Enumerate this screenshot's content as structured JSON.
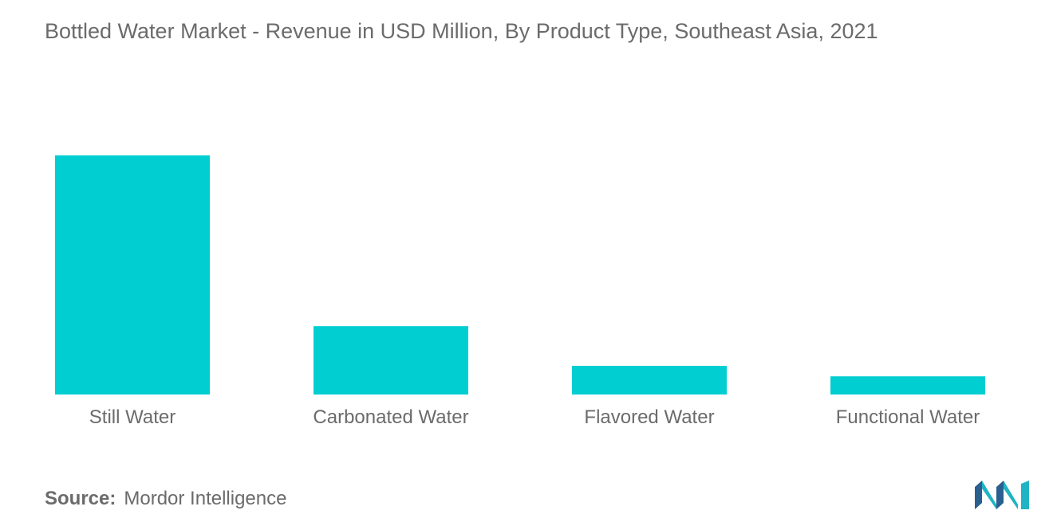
{
  "title": "Bottled Water Market - Revenue in USD Million, By Product Type, Southeast Asia, 2021",
  "source": {
    "label": "Source:",
    "text": "Mordor Intelligence"
  },
  "logo": {
    "icon": "mordor-intelligence-logo-icon",
    "colors": [
      "#2a5f8f",
      "#1fb3c4"
    ]
  },
  "colors": {
    "bar": "#00ced1",
    "text": "#6b6b6b",
    "background": "#ffffff"
  },
  "chart_data": {
    "type": "bar",
    "title": "Bottled Water Market - Revenue in USD Million, By Product Type, Southeast Asia, 2021",
    "categories": [
      "Still Water",
      "Carbonated Water",
      "Flavored Water",
      "Functional Water"
    ],
    "values": [
      100,
      28.6,
      12,
      7.6
    ],
    "xlabel": "",
    "ylabel": "",
    "ylim": [
      0,
      100
    ],
    "y_axis_visible": false,
    "grid": false,
    "legend": "none"
  }
}
